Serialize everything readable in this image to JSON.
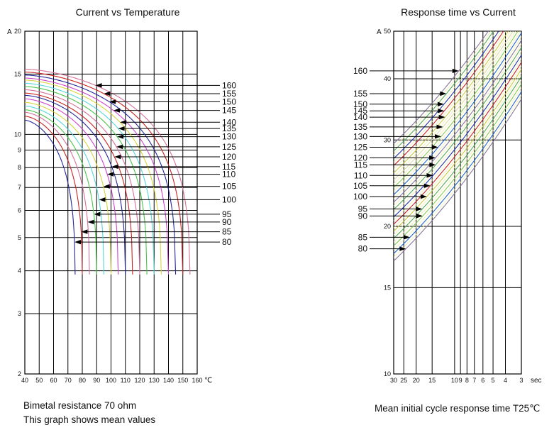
{
  "page": {
    "background": "#ffffff"
  },
  "chart_data": [
    {
      "type": "line",
      "title": "Current vs Temperature",
      "xlabel": "℃",
      "ylabel": "A",
      "x_scale": "linear",
      "y_scale": "log",
      "xlim": [
        40,
        160
      ],
      "ylim": [
        2,
        20
      ],
      "x_ticks": [
        40,
        50,
        60,
        70,
        80,
        90,
        100,
        110,
        120,
        130,
        140,
        150,
        160
      ],
      "y_ticks": [
        20,
        15,
        10,
        9,
        8,
        7,
        6,
        5,
        4,
        3,
        2
      ],
      "grid": "on",
      "legend_position": "right-labels-with-arrows",
      "footer": [
        "Bimetal resistance 70 ohm",
        "This graph shows mean values"
      ],
      "series": [
        {
          "temp_rating": "160",
          "color": "#d4709a",
          "current_at_40C_A": 15.5,
          "cutoff_temp_C": 155,
          "current_min_A": 3.9,
          "label_line_current_A": 13.9
        },
        {
          "temp_rating": "155",
          "color": "#cc2222",
          "current_at_40C_A": 15.2,
          "cutoff_temp_C": 150,
          "current_min_A": 3.9,
          "label_line_current_A": 13.15
        },
        {
          "temp_rating": "150",
          "color": "#26269c",
          "current_at_40C_A": 14.9,
          "cutoff_temp_C": 145,
          "current_min_A": 3.9,
          "label_line_current_A": 12.45
        },
        {
          "temp_rating": "145",
          "color": "#cc44cc",
          "current_at_40C_A": 14.6,
          "cutoff_temp_C": 140,
          "current_min_A": 3.9,
          "label_line_current_A": 11.75
        },
        {
          "temp_rating": "140",
          "color": "#d6d63e",
          "current_at_40C_A": 14.4,
          "cutoff_temp_C": 135,
          "current_min_A": 3.9,
          "label_line_current_A": 10.85
        },
        {
          "temp_rating": "135",
          "color": "#57d7d7",
          "current_at_40C_A": 14.1,
          "cutoff_temp_C": 130,
          "current_min_A": 3.9,
          "label_line_current_A": 10.4
        },
        {
          "temp_rating": "130",
          "color": "#4cc44c",
          "current_at_40C_A": 13.8,
          "cutoff_temp_C": 125,
          "current_min_A": 3.9,
          "label_line_current_A": 9.85
        },
        {
          "temp_rating": "125",
          "color": "#d4709a",
          "current_at_40C_A": 13.5,
          "cutoff_temp_C": 120,
          "current_min_A": 3.9,
          "label_line_current_A": 9.2
        },
        {
          "temp_rating": "120",
          "color": "#cc2222",
          "current_at_40C_A": 13.2,
          "cutoff_temp_C": 115,
          "current_min_A": 3.9,
          "label_line_current_A": 8.6
        },
        {
          "temp_rating": "115",
          "color": "#26269c",
          "current_at_40C_A": 13.0,
          "cutoff_temp_C": 110,
          "current_min_A": 3.9,
          "label_line_current_A": 8.05
        },
        {
          "temp_rating": "110",
          "color": "#cc44cc",
          "current_at_40C_A": 12.7,
          "cutoff_temp_C": 105,
          "current_min_A": 3.9,
          "label_line_current_A": 7.65
        },
        {
          "temp_rating": "105",
          "color": "#d6d63e",
          "current_at_40C_A": 12.4,
          "cutoff_temp_C": 100,
          "current_min_A": 3.9,
          "label_line_current_A": 7.05
        },
        {
          "temp_rating": "100",
          "color": "#57d7d7",
          "current_at_40C_A": 12.1,
          "cutoff_temp_C": 95,
          "current_min_A": 3.9,
          "label_line_current_A": 6.45
        },
        {
          "temp_rating": "95",
          "color": "#4cc44c",
          "current_at_40C_A": 11.8,
          "cutoff_temp_C": 90,
          "current_min_A": 3.9,
          "label_line_current_A": 5.85
        },
        {
          "temp_rating": "90",
          "color": "#d4709a",
          "current_at_40C_A": 11.6,
          "cutoff_temp_C": 85,
          "current_min_A": 3.9,
          "label_line_current_A": 5.55
        },
        {
          "temp_rating": "85",
          "color": "#cc2222",
          "current_at_40C_A": 11.3,
          "cutoff_temp_C": 80,
          "current_min_A": 3.9,
          "label_line_current_A": 5.2
        },
        {
          "temp_rating": "80",
          "color": "#26269c",
          "current_at_40C_A": 11.0,
          "cutoff_temp_C": 75,
          "current_min_A": 3.9,
          "label_line_current_A": 4.85
        }
      ]
    },
    {
      "type": "line",
      "title": "Response time vs Current",
      "xlabel": "sec",
      "ylabel": "A",
      "x_scale": "log-reversed",
      "y_scale": "log",
      "xlim": [
        30,
        3
      ],
      "ylim": [
        10,
        50
      ],
      "x_ticks": [
        30,
        25,
        20,
        15,
        10,
        9,
        8,
        7,
        6,
        5,
        4,
        3
      ],
      "y_ticks": [
        50,
        40,
        30,
        20,
        15,
        10
      ],
      "grid": "on",
      "legend_position": "left-labels-with-arrows",
      "footer": [
        "Mean initial cycle response time T25℃"
      ],
      "series": [
        {
          "temp_rating": "160",
          "color": "#887799",
          "current_at_30s_A": 29.5,
          "label_line_current_A": 41.5
        },
        {
          "temp_rating": "155",
          "color": "#55aa55",
          "current_at_30s_A": 28.5,
          "label_line_current_A": 37.3
        },
        {
          "temp_rating": "150",
          "color": "#2233aa",
          "current_at_30s_A": 27.5,
          "label_line_current_A": 35.5
        },
        {
          "temp_rating": "145",
          "color": "#cc2222",
          "current_at_30s_A": 26.6,
          "label_line_current_A": 34.4
        },
        {
          "temp_rating": "140",
          "color": "#cccc44",
          "current_at_30s_A": 25.7,
          "label_line_current_A": 33.4
        },
        {
          "temp_rating": "135",
          "color": "#ddddaa",
          "current_at_30s_A": 24.85,
          "label_line_current_A": 31.9
        },
        {
          "temp_rating": "130",
          "color": "#88cc55",
          "current_at_30s_A": 24.0,
          "label_line_current_A": 30.5
        },
        {
          "temp_rating": "125",
          "color": "#2266cc",
          "current_at_30s_A": 23.2,
          "label_line_current_A": 29.0
        },
        {
          "temp_rating": "120",
          "color": "#887799",
          "current_at_30s_A": 22.4,
          "label_line_current_A": 27.6
        },
        {
          "temp_rating": "115",
          "color": "#55aa55",
          "current_at_30s_A": 21.65,
          "label_line_current_A": 26.7
        },
        {
          "temp_rating": "110",
          "color": "#2233aa",
          "current_at_30s_A": 20.9,
          "label_line_current_A": 25.4
        },
        {
          "temp_rating": "105",
          "color": "#cc2222",
          "current_at_30s_A": 20.2,
          "label_line_current_A": 24.2
        },
        {
          "temp_rating": "100",
          "color": "#cccc44",
          "current_at_30s_A": 19.55,
          "label_line_current_A": 23.0
        },
        {
          "temp_rating": "95",
          "color": "#55aa55",
          "current_at_30s_A": 18.9,
          "label_line_current_A": 21.7
        },
        {
          "temp_rating": "90",
          "color": "#88cc55",
          "current_at_30s_A": 18.25,
          "label_line_current_A": 21.0
        },
        {
          "temp_rating": "85",
          "color": "#2266cc",
          "current_at_30s_A": 17.6,
          "label_line_current_A": 19.0
        },
        {
          "temp_rating": "80",
          "color": "#887799",
          "current_at_30s_A": 17.0,
          "label_line_current_A": 18.0
        }
      ]
    }
  ]
}
